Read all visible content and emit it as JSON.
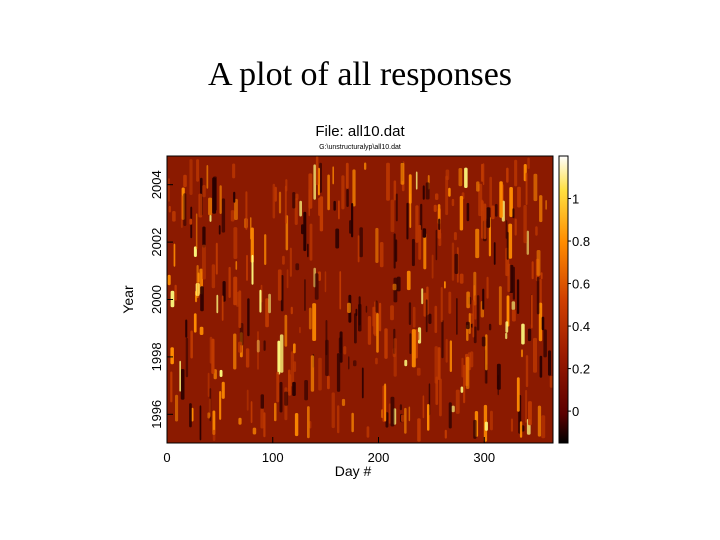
{
  "slide": {
    "title": "A plot of all responses"
  },
  "chart_data": {
    "type": "heatmap",
    "title": "File: all10.dat",
    "subtitle": "G:\\unstructuralyp\\all10.dat",
    "xlabel": "Day #",
    "ylabel": "Year",
    "xlim": [
      0,
      365
    ],
    "ylim": [
      1995,
      2005
    ],
    "x_ticks": [
      0,
      100,
      200,
      300
    ],
    "y_ticks": [
      1996,
      1998,
      2000,
      2002,
      2004
    ],
    "colorbar": {
      "range": [
        -0.15,
        1.2
      ],
      "ticks": [
        0,
        0.2,
        0.4,
        0.6,
        0.8,
        1
      ]
    },
    "colors": {
      "background": "#8b1a00",
      "mid": "#c03a00",
      "high": "#ff8c00",
      "peak": "#ffff80",
      "low": "#2a0000"
    }
  }
}
